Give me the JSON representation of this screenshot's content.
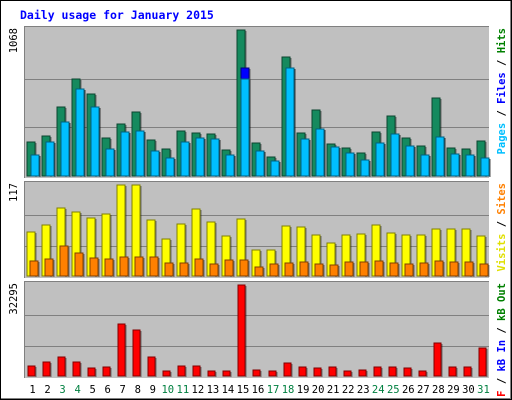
{
  "chart_data": {
    "type": "bar",
    "title": "Daily usage for January 2015",
    "days": [
      1,
      2,
      3,
      4,
      5,
      6,
      7,
      8,
      9,
      10,
      11,
      12,
      13,
      14,
      15,
      16,
      17,
      18,
      19,
      20,
      21,
      22,
      23,
      24,
      25,
      26,
      27,
      28,
      29,
      30,
      31
    ],
    "weekend_days": [
      3,
      4,
      10,
      11,
      17,
      18,
      24,
      25,
      31
    ],
    "panels": [
      {
        "id": "top",
        "ymax_label": "1068",
        "ymax": 1068,
        "legend": [
          {
            "text": "Pages",
            "color": "#00bfff"
          },
          {
            "text": " / ",
            "color": "#000000"
          },
          {
            "text": "Files",
            "color": "#0000ff"
          },
          {
            "text": " / ",
            "color": "#000000"
          },
          {
            "text": "Hits",
            "color": "#008000"
          }
        ],
        "series": [
          {
            "name": "Hits",
            "color": "#158a5e",
            "values": [
              246,
              296,
              508,
              706,
              599,
              279,
              377,
              469,
              264,
              197,
              328,
              317,
              309,
              191,
              1068,
              245,
              140,
              869,
              313,
              481,
              237,
              203,
              166,
              323,
              436,
              276,
              222,
              567,
              202,
              195,
              259
            ]
          },
          {
            "name": "Files",
            "color": "#0000ff",
            "values": [
              152,
              246,
              398,
              634,
              503,
              196,
              322,
              332,
              186,
              129,
              248,
              279,
              267,
              155,
              790,
              183,
              110,
              790,
              268,
              346,
              213,
              170,
              118,
              244,
              306,
              223,
              150,
              288,
              160,
              152,
              130
            ]
          },
          {
            "name": "Pages",
            "color": "#00bfff",
            "values": [
              152,
              246,
              398,
              634,
              503,
              196,
              322,
              332,
              186,
              129,
              248,
              279,
              267,
              155,
              710,
              183,
              110,
              790,
              268,
              346,
              213,
              170,
              118,
              244,
              306,
              223,
              150,
              288,
              160,
              152,
              130
            ]
          }
        ]
      },
      {
        "id": "middle",
        "ymax_label": "117",
        "ymax": 117,
        "legend": [
          {
            "text": "Visits",
            "color": "#e0e000"
          },
          {
            "text": " / ",
            "color": "#000000"
          },
          {
            "text": "Sites",
            "color": "#ff8000"
          }
        ],
        "series": [
          {
            "name": "Visits",
            "color": "#ffff00",
            "values": [
              57,
              65,
              87,
              82,
              75,
              80,
              117,
              117,
              72,
              47,
              67,
              86,
              69,
              52,
              73,
              33,
              34,
              64,
              63,
              53,
              42,
              53,
              54,
              66,
              55,
              53,
              53,
              61,
              61,
              61,
              52
            ]
          },
          {
            "name": "Sites",
            "color": "#ff8000",
            "values": [
              19,
              22,
              38,
              29,
              23,
              22,
              25,
              24,
              25,
              17,
              17,
              22,
              15,
              20,
              20,
              12,
              15,
              17,
              18,
              16,
              14,
              18,
              18,
              19,
              17,
              16,
              17,
              19,
              18,
              18,
              16
            ]
          }
        ]
      },
      {
        "id": "bottom",
        "ymax_label": "32295",
        "ymax": 32295,
        "legend": [
          {
            "text": "kB F",
            "color": "#ff0000"
          },
          {
            "text": " / ",
            "color": "#000000"
          },
          {
            "text": "kB In",
            "color": "#0000ff"
          },
          {
            "text": " / ",
            "color": "#000000"
          },
          {
            "text": "kB Out",
            "color": "#008000"
          }
        ],
        "series": [
          {
            "name": "kB F",
            "color": "#ff0000",
            "values": [
              3570,
              5080,
              6900,
              4970,
              2820,
              3180,
              18430,
              16420,
              6900,
              1900,
              3680,
              3670,
              1890,
              1900,
              32295,
              2140,
              1890,
              4630,
              3180,
              2880,
              3210,
              1890,
              2140,
              3180,
              3210,
              2880,
              1890,
              11700,
              3180,
              3180,
              9860
            ]
          }
        ]
      }
    ]
  }
}
